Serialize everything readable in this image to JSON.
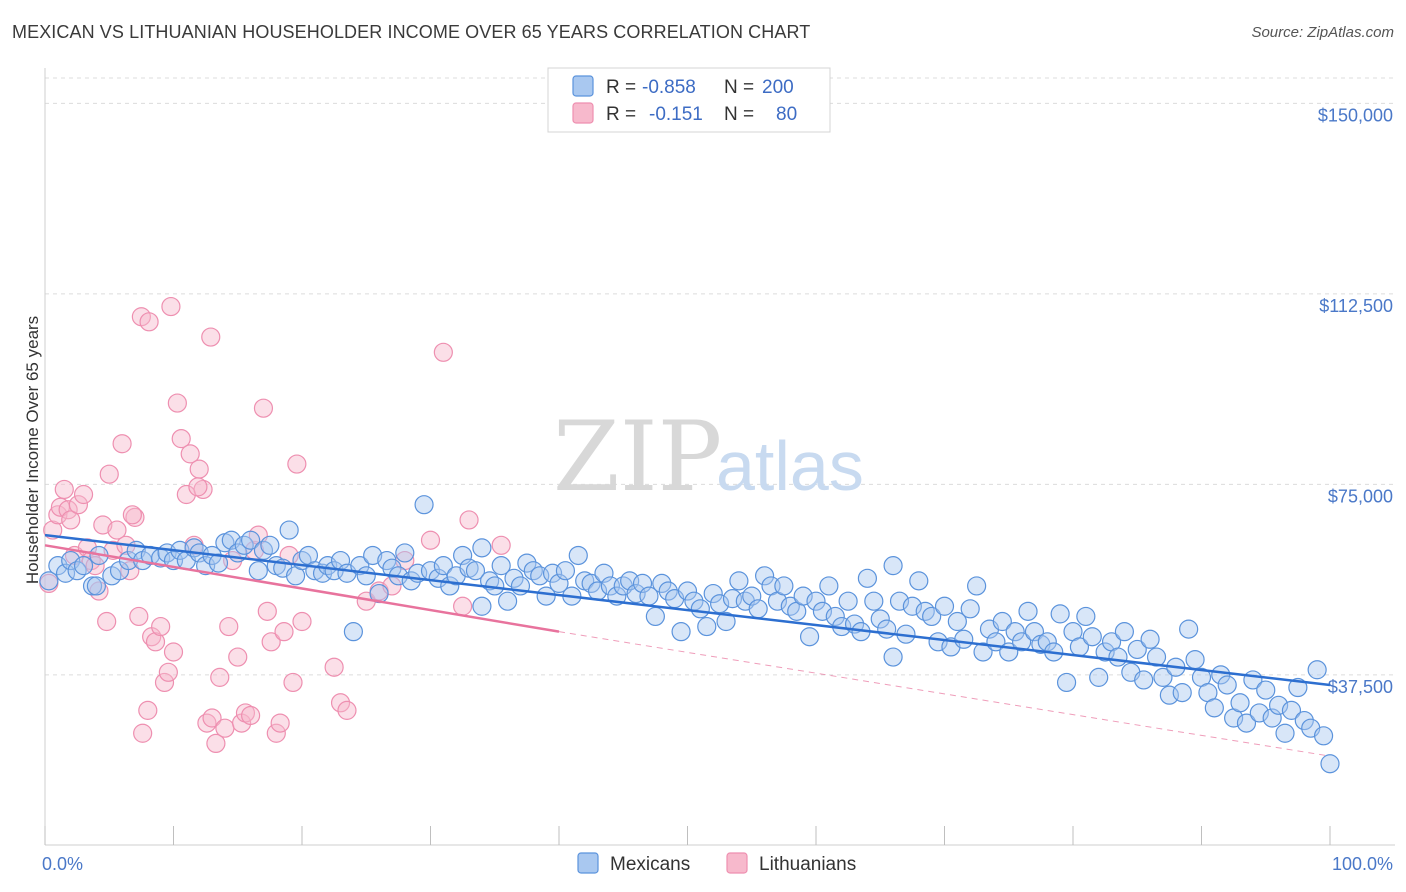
{
  "header": {
    "title": "MEXICAN VS LITHUANIAN HOUSEHOLDER INCOME OVER 65 YEARS CORRELATION CHART",
    "source": "Source: ZipAtlas.com"
  },
  "watermark": {
    "zip": "ZIP",
    "atlas": "atlas"
  },
  "legend": {
    "rows": [
      {
        "r_label": "R =",
        "r_value": "-0.858",
        "n_label": "N =",
        "n_value": "200",
        "color": "#a9c8f0"
      },
      {
        "r_label": "R =",
        "r_value": "-0.151",
        "n_label": "N =",
        "n_value": "80",
        "color": "#f7b9cc"
      }
    ]
  },
  "bottom_legend": [
    {
      "label": "Mexicans",
      "color": "#a9c8f0"
    },
    {
      "label": "Lithuanians",
      "color": "#f7b9cc"
    }
  ],
  "chart_data": {
    "type": "scatter",
    "title": "MEXICAN VS LITHUANIAN HOUSEHOLDER INCOME OVER 65 YEARS CORRELATION CHART",
    "xlabel": "",
    "ylabel": "Householder Income Over 65 years",
    "xlim": [
      0,
      100
    ],
    "ylim": [
      10000,
      160000
    ],
    "x_tick_labels": [
      "0.0%",
      "100.0%"
    ],
    "y_ticks": [
      37500,
      75000,
      112500,
      150000
    ],
    "y_tick_labels": [
      "$37,500",
      "$75,000",
      "$112,500",
      "$150,000"
    ],
    "grid": "horizontal dashed",
    "colors": {
      "mexicans": "#5b93dc",
      "mexicans_fill": "#a9c8f0",
      "lithuanians": "#ee8fb0",
      "lithuanians_fill": "#f7b9cc",
      "mex_trend": "#2d6fd0",
      "lit_trend": "#e8739d"
    },
    "series": [
      {
        "name": "Mexicans",
        "trend": {
          "x": [
            0,
            100
          ],
          "y": [
            65000,
            35500
          ]
        },
        "points": [
          [
            0.3,
            56000
          ],
          [
            1,
            59000
          ],
          [
            1.6,
            57500
          ],
          [
            2,
            60000
          ],
          [
            2.5,
            58000
          ],
          [
            3,
            59000
          ],
          [
            3.7,
            55000
          ],
          [
            4.2,
            61000
          ],
          [
            5.2,
            57000
          ],
          [
            5.8,
            58000
          ],
          [
            6.5,
            60000
          ],
          [
            7.1,
            62000
          ],
          [
            7.6,
            60000
          ],
          [
            8.2,
            61000
          ],
          [
            9,
            60500
          ],
          [
            9.5,
            61500
          ],
          [
            10,
            60000
          ],
          [
            10.5,
            62000
          ],
          [
            11,
            60000
          ],
          [
            11.6,
            62500
          ],
          [
            12,
            61500
          ],
          [
            12.5,
            59000
          ],
          [
            13,
            61000
          ],
          [
            13.5,
            59500
          ],
          [
            14,
            63500
          ],
          [
            14.5,
            64000
          ],
          [
            15,
            61500
          ],
          [
            15.5,
            63000
          ],
          [
            16,
            64000
          ],
          [
            16.6,
            58000
          ],
          [
            17,
            62000
          ],
          [
            17.5,
            63000
          ],
          [
            18,
            59000
          ],
          [
            18.5,
            58500
          ],
          [
            19,
            66000
          ],
          [
            19.5,
            57000
          ],
          [
            20,
            60000
          ],
          [
            20.5,
            61000
          ],
          [
            21,
            58000
          ],
          [
            21.6,
            57500
          ],
          [
            22,
            59000
          ],
          [
            22.5,
            58000
          ],
          [
            23,
            60000
          ],
          [
            23.5,
            57500
          ],
          [
            24,
            46000
          ],
          [
            24.5,
            59000
          ],
          [
            25,
            57000
          ],
          [
            25.5,
            61000
          ],
          [
            26,
            53500
          ],
          [
            26.6,
            60000
          ],
          [
            27,
            58500
          ],
          [
            27.5,
            57000
          ],
          [
            28,
            61500
          ],
          [
            28.5,
            56000
          ],
          [
            29,
            57500
          ],
          [
            29.5,
            71000
          ],
          [
            30,
            58000
          ],
          [
            30.6,
            56500
          ],
          [
            31,
            59000
          ],
          [
            31.5,
            55000
          ],
          [
            32,
            57000
          ],
          [
            32.5,
            61000
          ],
          [
            33,
            58500
          ],
          [
            33.5,
            58000
          ],
          [
            34,
            62500
          ],
          [
            34.6,
            56000
          ],
          [
            35,
            55000
          ],
          [
            35.5,
            59000
          ],
          [
            36,
            52000
          ],
          [
            36.5,
            56500
          ],
          [
            37,
            55000
          ],
          [
            37.5,
            59500
          ],
          [
            38,
            58000
          ],
          [
            38.5,
            57000
          ],
          [
            39,
            53000
          ],
          [
            39.5,
            57500
          ],
          [
            40,
            55500
          ],
          [
            40.5,
            58000
          ],
          [
            41,
            53000
          ],
          [
            41.5,
            61000
          ],
          [
            42,
            56000
          ],
          [
            42.5,
            55500
          ],
          [
            43,
            54000
          ],
          [
            43.5,
            57500
          ],
          [
            44,
            55000
          ],
          [
            44.5,
            53000
          ],
          [
            45,
            55000
          ],
          [
            45.5,
            56000
          ],
          [
            46,
            53500
          ],
          [
            46.5,
            55500
          ],
          [
            47,
            53000
          ],
          [
            47.5,
            49000
          ],
          [
            48,
            55500
          ],
          [
            48.5,
            54000
          ],
          [
            49,
            52500
          ],
          [
            49.5,
            46000
          ],
          [
            50,
            54000
          ],
          [
            50.5,
            52000
          ],
          [
            51,
            50500
          ],
          [
            51.5,
            47000
          ],
          [
            52,
            53500
          ],
          [
            52.5,
            51500
          ],
          [
            53,
            48000
          ],
          [
            53.5,
            52500
          ],
          [
            54,
            56000
          ],
          [
            54.5,
            52000
          ],
          [
            55,
            53000
          ],
          [
            55.5,
            50500
          ],
          [
            56,
            57000
          ],
          [
            56.5,
            55000
          ],
          [
            57,
            52000
          ],
          [
            57.5,
            55000
          ],
          [
            58,
            51000
          ],
          [
            58.5,
            50000
          ],
          [
            59,
            53000
          ],
          [
            59.5,
            45000
          ],
          [
            60,
            52000
          ],
          [
            60.5,
            50000
          ],
          [
            61,
            55000
          ],
          [
            61.5,
            49000
          ],
          [
            62,
            47000
          ],
          [
            62.5,
            52000
          ],
          [
            63,
            47500
          ],
          [
            63.5,
            46000
          ],
          [
            64,
            56500
          ],
          [
            64.5,
            52000
          ],
          [
            65,
            48500
          ],
          [
            65.5,
            46500
          ],
          [
            66,
            59000
          ],
          [
            66.5,
            52000
          ],
          [
            67,
            45500
          ],
          [
            67.5,
            51000
          ],
          [
            68,
            56000
          ],
          [
            68.5,
            50000
          ],
          [
            69,
            49000
          ],
          [
            69.5,
            44000
          ],
          [
            70,
            51000
          ],
          [
            70.5,
            43000
          ],
          [
            71,
            48000
          ],
          [
            71.5,
            44500
          ],
          [
            72,
            50500
          ],
          [
            72.5,
            55000
          ],
          [
            73,
            42000
          ],
          [
            73.5,
            46500
          ],
          [
            74,
            44000
          ],
          [
            74.5,
            48000
          ],
          [
            75,
            42000
          ],
          [
            75.5,
            46000
          ],
          [
            76,
            44000
          ],
          [
            76.5,
            50000
          ],
          [
            77,
            46000
          ],
          [
            77.5,
            43500
          ],
          [
            78,
            44000
          ],
          [
            78.5,
            42000
          ],
          [
            79,
            49500
          ],
          [
            79.5,
            36000
          ],
          [
            80,
            46000
          ],
          [
            80.5,
            43000
          ],
          [
            81,
            49000
          ],
          [
            81.5,
            45000
          ],
          [
            82,
            37000
          ],
          [
            82.5,
            42000
          ],
          [
            83,
            44000
          ],
          [
            83.5,
            41000
          ],
          [
            84,
            46000
          ],
          [
            84.5,
            38000
          ],
          [
            85,
            42500
          ],
          [
            85.5,
            36500
          ],
          [
            86,
            44500
          ],
          [
            86.5,
            41000
          ],
          [
            87,
            37000
          ],
          [
            87.5,
            33500
          ],
          [
            88,
            39000
          ],
          [
            88.5,
            34000
          ],
          [
            89,
            46500
          ],
          [
            89.5,
            40500
          ],
          [
            90,
            37000
          ],
          [
            90.5,
            34000
          ],
          [
            91,
            31000
          ],
          [
            91.5,
            37500
          ],
          [
            92,
            35500
          ],
          [
            92.5,
            29000
          ],
          [
            93,
            32000
          ],
          [
            93.5,
            28000
          ],
          [
            94,
            36500
          ],
          [
            94.5,
            30000
          ],
          [
            95,
            34500
          ],
          [
            95.5,
            29000
          ],
          [
            96,
            31500
          ],
          [
            96.5,
            26000
          ],
          [
            97,
            30500
          ],
          [
            97.5,
            35000
          ],
          [
            98,
            28500
          ],
          [
            98.5,
            27000
          ],
          [
            99,
            38500
          ],
          [
            99.5,
            25500
          ],
          [
            100,
            20000
          ],
          [
            4,
            55000
          ],
          [
            34,
            51000
          ],
          [
            66,
            41000
          ]
        ]
      },
      {
        "name": "Lithuanians",
        "trend": {
          "x": [
            0,
            40
          ],
          "y": [
            63000,
            46000
          ]
        },
        "trend_extension": {
          "x": [
            40,
            100
          ],
          "y": [
            46000,
            21500
          ]
        },
        "points": [
          [
            0.3,
            55500
          ],
          [
            0.6,
            66000
          ],
          [
            1,
            69000
          ],
          [
            1.2,
            70500
          ],
          [
            1.5,
            74000
          ],
          [
            1.8,
            70000
          ],
          [
            2,
            68000
          ],
          [
            2.3,
            61000
          ],
          [
            2.6,
            71000
          ],
          [
            3,
            73000
          ],
          [
            3.3,
            62500
          ],
          [
            3.6,
            60000
          ],
          [
            3.9,
            59000
          ],
          [
            4.2,
            54000
          ],
          [
            4.5,
            67000
          ],
          [
            4.8,
            48000
          ],
          [
            5,
            77000
          ],
          [
            5.3,
            62000
          ],
          [
            5.6,
            66000
          ],
          [
            6,
            83000
          ],
          [
            6.3,
            63000
          ],
          [
            6.6,
            58000
          ],
          [
            7,
            68500
          ],
          [
            7.3,
            49000
          ],
          [
            7.6,
            26000
          ],
          [
            8,
            30500
          ],
          [
            8.3,
            45000
          ],
          [
            8.6,
            44000
          ],
          [
            9,
            47000
          ],
          [
            9.3,
            36000
          ],
          [
            9.6,
            38000
          ],
          [
            10,
            42000
          ],
          [
            10.3,
            91000
          ],
          [
            10.6,
            84000
          ],
          [
            11,
            73000
          ],
          [
            11.3,
            81000
          ],
          [
            11.6,
            63000
          ],
          [
            12,
            78000
          ],
          [
            12.3,
            74000
          ],
          [
            12.6,
            28000
          ],
          [
            13,
            29000
          ],
          [
            13.3,
            24000
          ],
          [
            13.6,
            37000
          ],
          [
            14,
            27000
          ],
          [
            14.3,
            47000
          ],
          [
            14.6,
            60000
          ],
          [
            15,
            41000
          ],
          [
            15.3,
            28000
          ],
          [
            15.6,
            30000
          ],
          [
            16,
            29500
          ],
          [
            16.3,
            62000
          ],
          [
            16.6,
            65000
          ],
          [
            17,
            90000
          ],
          [
            17.3,
            50000
          ],
          [
            17.6,
            44000
          ],
          [
            18,
            26000
          ],
          [
            18.3,
            28000
          ],
          [
            18.6,
            46000
          ],
          [
            19,
            61000
          ],
          [
            19.3,
            36000
          ],
          [
            19.6,
            79000
          ],
          [
            20,
            48000
          ],
          [
            7.5,
            108000
          ],
          [
            8.1,
            107000
          ],
          [
            9.8,
            110000
          ],
          [
            12.9,
            104000
          ],
          [
            31,
            101000
          ],
          [
            22.5,
            39000
          ],
          [
            23,
            32000
          ],
          [
            23.5,
            30500
          ],
          [
            25,
            52000
          ],
          [
            26,
            54000
          ],
          [
            27,
            55000
          ],
          [
            28,
            60000
          ],
          [
            30,
            64000
          ],
          [
            32.5,
            51000
          ],
          [
            33,
            68000
          ],
          [
            35.5,
            63000
          ],
          [
            6.8,
            69000
          ],
          [
            11.9,
            74500
          ]
        ]
      }
    ]
  }
}
